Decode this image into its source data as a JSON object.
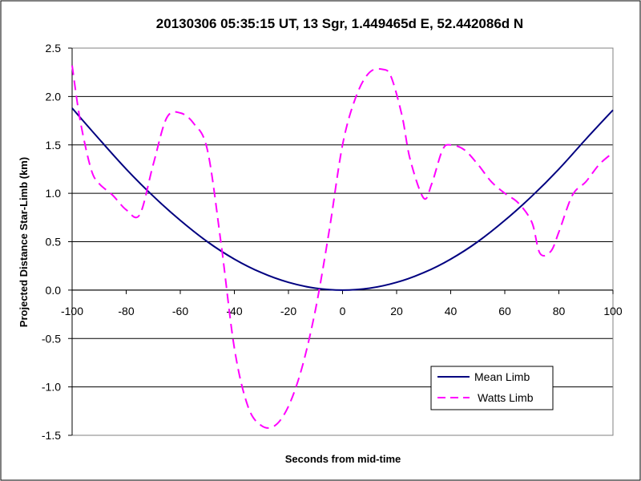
{
  "chart_data": {
    "type": "line",
    "title": "20130306 05:35:15 UT, 13 Sgr, 1.449465d E, 52.442086d N",
    "xlabel": "Seconds from mid-time",
    "ylabel": "Projected Distance Star-Limb (km)",
    "xlim": [
      -100,
      100
    ],
    "ylim": [
      -1.5,
      2.5
    ],
    "xticks": [
      -100,
      -80,
      -60,
      -40,
      -20,
      0,
      20,
      40,
      60,
      80,
      100
    ],
    "yticks": [
      "2.5",
      "2.0",
      "1.5",
      "1.0",
      "0.5",
      "0.0",
      "-0.5",
      "-1.0",
      "-1.5"
    ],
    "ytick_values": [
      2.5,
      2.0,
      1.5,
      1.0,
      0.5,
      0.0,
      -0.5,
      -1.0,
      -1.5
    ],
    "grid": "horizontal",
    "legend_position": "bottom-right",
    "series": [
      {
        "name": "Mean Limb",
        "color": "#000080",
        "style": "solid",
        "x": [
          -100,
          -90,
          -80,
          -70,
          -60,
          -50,
          -40,
          -30,
          -20,
          -10,
          0,
          10,
          20,
          30,
          40,
          50,
          60,
          70,
          80,
          90,
          100
        ],
        "y": [
          1.88,
          1.56,
          1.25,
          0.97,
          0.72,
          0.5,
          0.32,
          0.18,
          0.08,
          0.02,
          0.0,
          0.02,
          0.08,
          0.18,
          0.32,
          0.5,
          0.72,
          0.97,
          1.25,
          1.56,
          1.86
        ]
      },
      {
        "name": "Watts Limb",
        "color": "#FF00FF",
        "style": "dashed",
        "x": [
          -100,
          -97,
          -93,
          -90,
          -85,
          -80,
          -75,
          -70,
          -65,
          -60,
          -55,
          -50,
          -45,
          -40,
          -35,
          -30,
          -25,
          -20,
          -15,
          -10,
          -5,
          0,
          5,
          10,
          15,
          18,
          22,
          25,
          30,
          33,
          37,
          40,
          45,
          50,
          55,
          60,
          65,
          70,
          73,
          77,
          80,
          85,
          90,
          95,
          100
        ],
        "y": [
          2.32,
          1.75,
          1.25,
          1.1,
          0.98,
          0.83,
          0.78,
          1.3,
          1.78,
          1.83,
          1.72,
          1.45,
          0.5,
          -0.6,
          -1.2,
          -1.4,
          -1.4,
          -1.2,
          -0.8,
          -0.2,
          0.6,
          1.5,
          2.0,
          2.25,
          2.28,
          2.2,
          1.8,
          1.35,
          0.95,
          1.1,
          1.45,
          1.5,
          1.45,
          1.3,
          1.12,
          1.0,
          0.9,
          0.7,
          0.38,
          0.4,
          0.6,
          0.98,
          1.12,
          1.3,
          1.42
        ]
      }
    ]
  }
}
